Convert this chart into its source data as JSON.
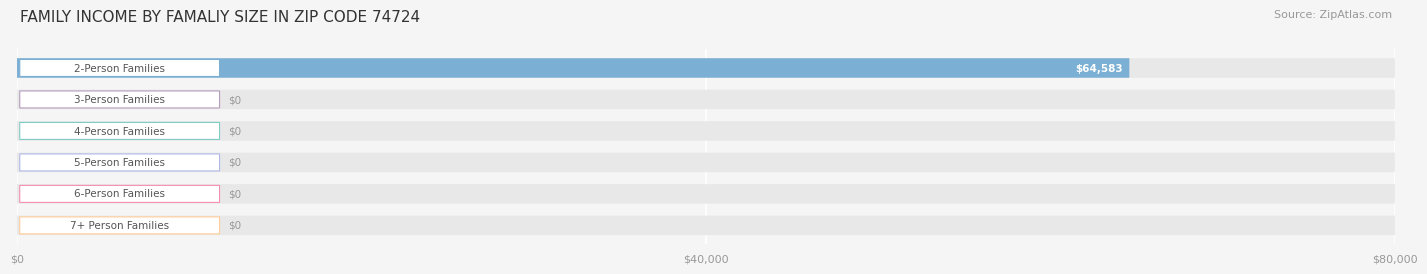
{
  "title": "FAMILY INCOME BY FAMALIY SIZE IN ZIP CODE 74724",
  "source": "Source: ZipAtlas.com",
  "categories": [
    "2-Person Families",
    "3-Person Families",
    "4-Person Families",
    "5-Person Families",
    "6-Person Families",
    "7+ Person Families"
  ],
  "values": [
    64583,
    0,
    0,
    0,
    0,
    0
  ],
  "bar_colors": [
    "#7bafd4",
    "#b39dbd",
    "#80cbc4",
    "#b0b8e8",
    "#f48fb1",
    "#ffcc99"
  ],
  "label_colors": [
    "#7bafd4",
    "#b39dbd",
    "#80cbc4",
    "#b0b8e8",
    "#f48fb1",
    "#ffcc99"
  ],
  "value_labels": [
    "$64,583",
    "$0",
    "$0",
    "$0",
    "$0",
    "$0"
  ],
  "xlim": [
    0,
    80000
  ],
  "xticks": [
    0,
    40000,
    80000
  ],
  "xtick_labels": [
    "$0",
    "$40,000",
    "$80,000"
  ],
  "background_color": "#f5f5f5",
  "bar_bg_color": "#e8e8e8",
  "title_fontsize": 11,
  "source_fontsize": 8,
  "label_fontsize": 7.5,
  "value_fontsize": 7.5
}
